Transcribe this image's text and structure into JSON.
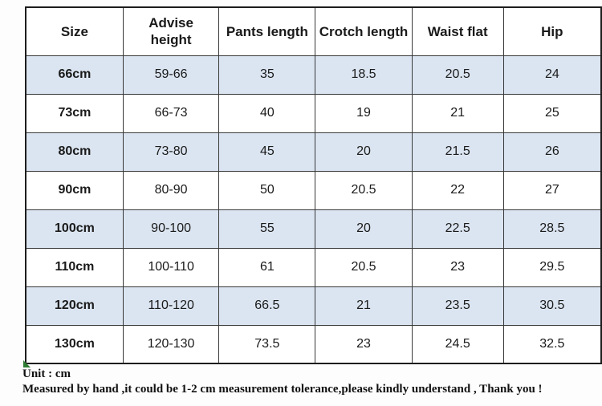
{
  "chart_data": {
    "type": "table",
    "columns": [
      "Size",
      "Advise height",
      "Pants length",
      "Crotch length",
      "Waist flat",
      "Hip"
    ],
    "rows": [
      [
        "66cm",
        "59-66",
        "35",
        "18.5",
        "20.5",
        "24"
      ],
      [
        "73cm",
        "66-73",
        "40",
        "19",
        "21",
        "25"
      ],
      [
        "80cm",
        "73-80",
        "45",
        "20",
        "21.5",
        "26"
      ],
      [
        "90cm",
        "80-90",
        "50",
        "20.5",
        "22",
        "27"
      ],
      [
        "100cm",
        "90-100",
        "55",
        "20",
        "22.5",
        "28.5"
      ],
      [
        "110cm",
        "100-110",
        "61",
        "20.5",
        "23",
        "29.5"
      ],
      [
        "120cm",
        "110-120",
        "66.5",
        "21",
        "23.5",
        "30.5"
      ],
      [
        "130cm",
        "120-130",
        "73.5",
        "23",
        "24.5",
        "32.5"
      ]
    ],
    "unit": "cm",
    "shaded_row_indices": [
      0,
      2,
      4,
      6
    ],
    "legend_position": "none",
    "grid": "all-cell-borders"
  },
  "notes": {
    "unit_label": "Unit : cm",
    "tolerance_note": "Measured by hand ,it could be 1-2 cm measurement tolerance,please kindly understand , Thank you !"
  },
  "colors": {
    "row_shade": "#dbe5f1",
    "row_plain": "#ffffff",
    "border": "#383838",
    "outer_border": "#1d1d1d",
    "text": "#1a1a1a",
    "corner_marker_green": "#2e7d32"
  }
}
